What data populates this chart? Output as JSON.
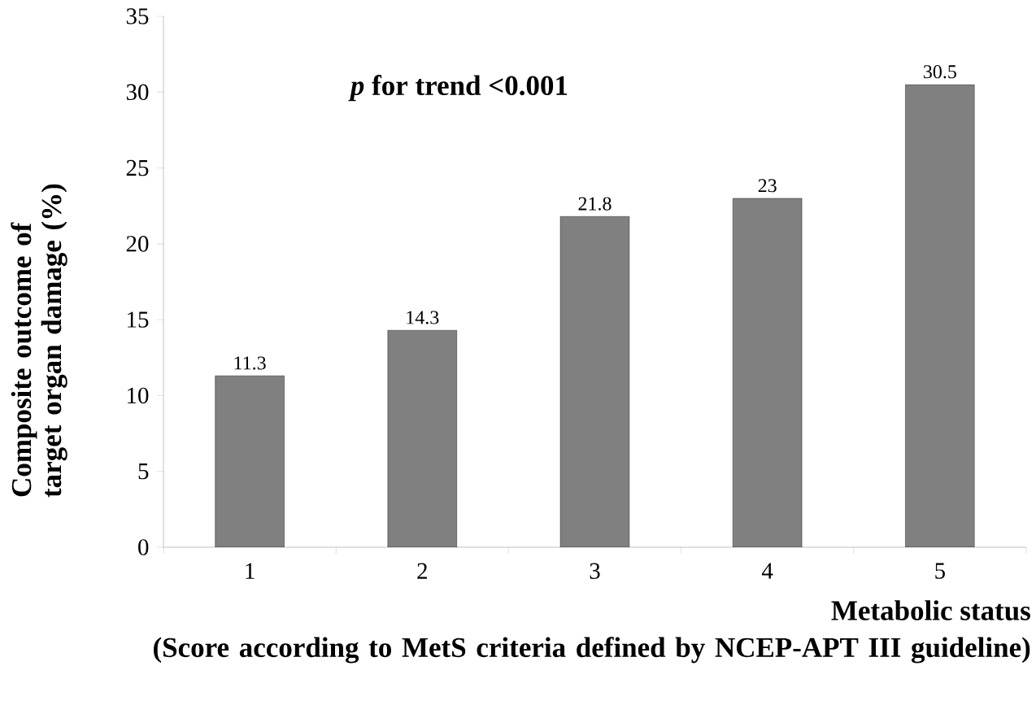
{
  "chart_data": {
    "type": "bar",
    "categories": [
      "1",
      "2",
      "3",
      "4",
      "5"
    ],
    "values": [
      11.3,
      14.3,
      21.8,
      23,
      30.5
    ],
    "color": "#808080",
    "data_labels": true,
    "ylim": [
      0,
      35
    ],
    "yticks": [
      0,
      5,
      10,
      15,
      20,
      25,
      30,
      35
    ],
    "xlabel": "Metabolic status",
    "ylabel": "Composite outcome of target organ damage (%)",
    "annotations": [
      "*p* for trend <0.001",
      "(Score according to MetS criteria defined by NCEP-APT III guideline)"
    ],
    "grid": false
  }
}
